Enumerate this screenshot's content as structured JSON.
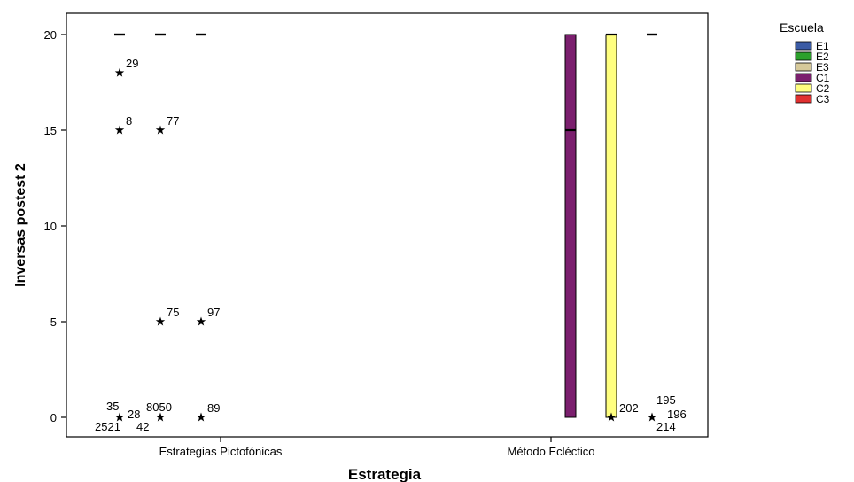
{
  "chart_data": {
    "type": "boxplot",
    "xlabel": "Estrategia",
    "ylabel": "Inversas postest 2",
    "ylim": [
      -1,
      21
    ],
    "yticks": [
      0,
      5,
      10,
      15,
      20
    ],
    "grid": false,
    "legend_placement": "right",
    "categories": [
      "Estrategias Pictofónicas",
      "Método Ecléctico"
    ],
    "legend": {
      "title": "Escuela",
      "entries": [
        {
          "name": "E1",
          "color": "#3b5ba5"
        },
        {
          "name": "E2",
          "color": "#2ca02c"
        },
        {
          "name": "E3",
          "color": "#d6c99a"
        },
        {
          "name": "C1",
          "color": "#7b1f6e"
        },
        {
          "name": "C2",
          "color": "#ffff7f"
        },
        {
          "name": "C3",
          "color": "#e03030"
        }
      ]
    },
    "boxes": [
      {
        "category": "Estrategias Pictofónicas",
        "group": "E1",
        "q1": 20,
        "median": 20,
        "q3": 20,
        "whisker_low": 20,
        "whisker_high": 20
      },
      {
        "category": "Estrategias Pictofónicas",
        "group": "E2",
        "q1": 20,
        "median": 20,
        "q3": 20,
        "whisker_low": 20,
        "whisker_high": 20
      },
      {
        "category": "Estrategias Pictofónicas",
        "group": "E3",
        "q1": 20,
        "median": 20,
        "q3": 20,
        "whisker_low": 20,
        "whisker_high": 20
      },
      {
        "category": "Método Ecléctico",
        "group": "C1",
        "q1": 0,
        "median": 15,
        "q3": 20,
        "whisker_low": 0,
        "whisker_high": 20
      },
      {
        "category": "Método Ecléctico",
        "group": "C2",
        "q1": 0,
        "median": 20,
        "q3": 20,
        "whisker_low": 0,
        "whisker_high": 20
      },
      {
        "category": "Método Ecléctico",
        "group": "C3",
        "q1": 20,
        "median": 20,
        "q3": 20,
        "whisker_low": 20,
        "whisker_high": 20
      }
    ],
    "outliers": [
      {
        "group": "E1",
        "value": 18,
        "label": "29"
      },
      {
        "group": "E1",
        "value": 15,
        "label": "8"
      },
      {
        "group": "E2",
        "value": 15,
        "label": "77"
      },
      {
        "group": "E2",
        "value": 5,
        "label": "75"
      },
      {
        "group": "E3",
        "value": 5,
        "label": "97"
      },
      {
        "group": "E1",
        "value": 0,
        "labels": [
          "35",
          "28",
          "2521",
          "42"
        ]
      },
      {
        "group": "E2",
        "value": 0,
        "labels": [
          "8050"
        ]
      },
      {
        "group": "E3",
        "value": 0,
        "label": "89"
      },
      {
        "group": "C2",
        "value": 0,
        "label": "202"
      },
      {
        "group": "C3",
        "value": 0,
        "labels": [
          "195",
          "196",
          "214"
        ]
      }
    ]
  }
}
